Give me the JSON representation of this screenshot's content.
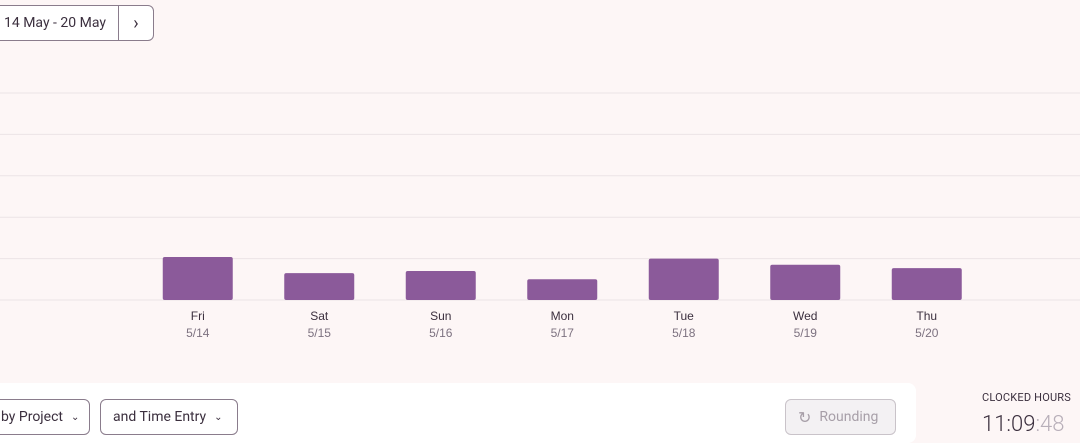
{
  "header": {
    "date_range": "14 May - 20 May",
    "next_button": "›"
  },
  "chart_data": {
    "type": "bar",
    "categories": [
      "Fri",
      "Sat",
      "Sun",
      "Mon",
      "Tue",
      "Wed",
      "Thu"
    ],
    "dates": [
      "5/14",
      "5/15",
      "5/16",
      "5/17",
      "5/18",
      "5/19",
      "5/20"
    ],
    "values": [
      2.08,
      1.3,
      1.4,
      1.0,
      2.0,
      1.7,
      1.54
    ],
    "color": "#8b5a9a",
    "ylim": [
      0,
      10
    ],
    "yticks": [
      0,
      2,
      4,
      6,
      8,
      10
    ],
    "grid": true
  },
  "toolbar": {
    "group_by": "by Project",
    "sub_group": "and Time Entry",
    "rounding": "Rounding"
  },
  "summary": {
    "label": "CLOCKED HOURS",
    "time_main": "11:09",
    "time_seconds": ":48"
  }
}
